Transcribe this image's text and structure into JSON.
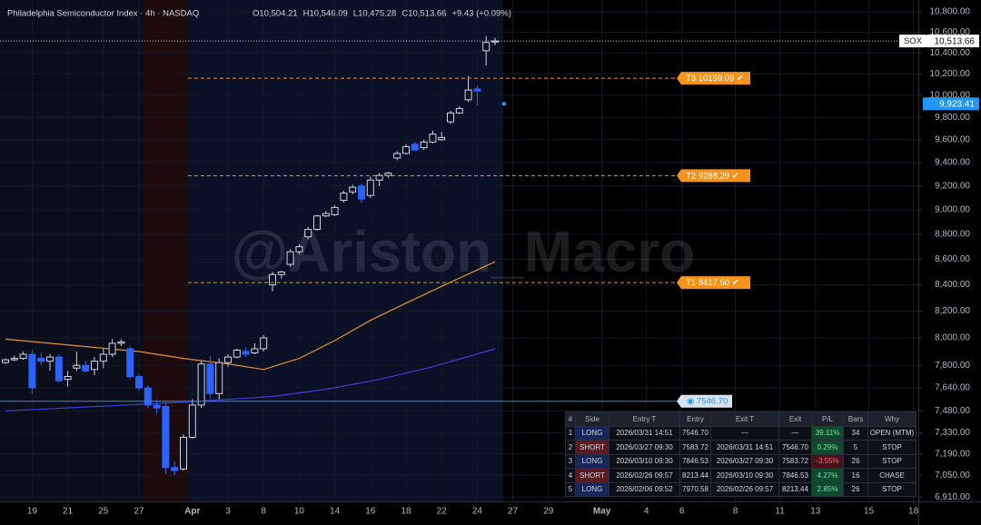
{
  "chart_data": {
    "type": "candlestick",
    "title": "Philadelphia Semiconductor Index · 4h · NASDAQ",
    "ohlc_header": [
      "O10,504.21",
      "H10,546.09",
      "L10,475.28",
      "C10,513.66"
    ],
    "change": "+9.43 (+0.09%)",
    "watermark": "@Ariston_Macro",
    "categories": [
      null,
      null,
      null,
      "19",
      null,
      null,
      null,
      "21",
      null,
      null,
      null,
      "25",
      null,
      null,
      null,
      "27",
      null,
      null,
      null,
      null,
      null,
      "Apr",
      null,
      null,
      null,
      "3",
      null,
      null,
      null,
      "8",
      null,
      null,
      null,
      "10",
      null,
      null,
      null,
      "14",
      null,
      null,
      null,
      "16",
      null,
      null,
      null,
      "18",
      null,
      null,
      null,
      "22",
      null,
      null,
      null,
      "24",
      null,
      null,
      null,
      "27",
      null,
      null,
      null,
      "29",
      null,
      null,
      null,
      null,
      null,
      "May",
      null,
      null,
      null,
      null,
      "4",
      null,
      null,
      null,
      "6",
      null,
      null,
      null,
      null,
      null,
      "8",
      null,
      null,
      null,
      null,
      "11",
      null,
      null,
      null,
      "13",
      null,
      null,
      null,
      null,
      null,
      "15",
      null,
      null,
      null,
      null,
      "18"
    ],
    "open": [
      7820,
      7840,
      7850,
      7880,
      7850,
      7830,
      7860,
      7700,
      7780,
      7800,
      7770,
      7830,
      7880,
      7960,
      7920,
      7720,
      7640,
      7520,
      7510,
      7100,
      7090,
      7300,
      7520,
      7810,
      7600,
      7820,
      7860,
      7900,
      7890,
      7920,
      8400,
      8480,
      8560,
      8660,
      8780,
      8840,
      8950,
      8960,
      9080,
      9150,
      9200,
      9120,
      9250,
      9290,
      9440,
      9480,
      9560,
      9530,
      9580,
      9600,
      9760,
      9840,
      9960,
      10060,
      10420,
      10504.21,
      null,
      null,
      null,
      null,
      null,
      null,
      null,
      null,
      null,
      null,
      null,
      null,
      null,
      null,
      null,
      null,
      null,
      null,
      null,
      null,
      null,
      null,
      null,
      null,
      null,
      null,
      null,
      null,
      null,
      null,
      null,
      null,
      null,
      null,
      null,
      null,
      null,
      null,
      null,
      null,
      null,
      null,
      null,
      null,
      null,
      null,
      null
    ],
    "high": [
      7850,
      7870,
      7900,
      7910,
      7890,
      7880,
      7880,
      7760,
      7900,
      7830,
      7860,
      7920,
      7990,
      7990,
      7940,
      7740,
      7660,
      7560,
      7540,
      7140,
      7320,
      7560,
      7830,
      7870,
      7850,
      7880,
      7920,
      7930,
      7960,
      8020,
      8500,
      8510,
      8680,
      8720,
      8860,
      8960,
      8990,
      9040,
      9160,
      9210,
      9220,
      9280,
      9310,
      9320,
      9500,
      9560,
      9580,
      9600,
      9680,
      9670,
      9860,
      9900,
      10180,
      10090,
      10560,
      10546.09,
      null,
      null,
      null,
      null,
      null,
      null,
      null,
      null,
      null,
      null,
      null,
      null,
      null,
      null,
      null,
      null,
      null,
      null,
      null,
      null,
      null,
      null,
      null,
      null,
      null,
      null,
      null,
      null,
      null,
      null,
      null,
      null,
      null,
      null,
      null,
      null,
      null,
      null,
      null,
      null,
      null,
      null,
      null,
      null,
      null,
      null,
      null
    ],
    "low": [
      7810,
      7830,
      7840,
      7600,
      7800,
      7760,
      7680,
      7650,
      7760,
      7750,
      7730,
      7780,
      7860,
      7940,
      7700,
      7620,
      7500,
      7460,
      7060,
      7050,
      7080,
      7290,
      7500,
      7560,
      7560,
      7790,
      7850,
      7860,
      7880,
      7900,
      8350,
      8450,
      8540,
      8640,
      8760,
      8830,
      8940,
      8950,
      9060,
      9130,
      9060,
      9100,
      9200,
      9270,
      9420,
      9470,
      9500,
      9510,
      9570,
      9590,
      9740,
      9830,
      9940,
      9910,
      10280,
      10475.28,
      null,
      null,
      null,
      null,
      null,
      null,
      null,
      null,
      null,
      null,
      null,
      null,
      null,
      null,
      null,
      null,
      null,
      null,
      null,
      null,
      null,
      null,
      null,
      null,
      null,
      null,
      null,
      null,
      null,
      null,
      null,
      null,
      null,
      null,
      null,
      null,
      null,
      null,
      null,
      null,
      null,
      null,
      null,
      null,
      null,
      null,
      null
    ],
    "close": [
      7840,
      7850,
      7880,
      7640,
      7830,
      7860,
      7690,
      7720,
      7800,
      7760,
      7830,
      7880,
      7960,
      7970,
      7720,
      7640,
      7520,
      7500,
      7100,
      7080,
      7300,
      7520,
      7810,
      7600,
      7820,
      7860,
      7910,
      7880,
      7920,
      8000,
      8480,
      8500,
      8660,
      8700,
      8840,
      8950,
      8970,
      9020,
      9140,
      9190,
      9090,
      9250,
      9290,
      9310,
      9480,
      9540,
      9510,
      9580,
      9650,
      9620,
      9840,
      9880,
      10050,
      10040,
      10500,
      10513.66,
      null,
      null,
      null,
      null,
      null,
      null,
      null,
      null,
      null,
      null,
      null,
      null,
      null,
      null,
      null,
      null,
      null,
      null,
      null,
      null,
      null,
      null,
      null,
      null,
      null,
      null,
      null,
      null,
      null,
      null,
      null,
      null,
      null,
      null,
      null,
      null,
      null,
      null,
      null,
      null,
      null,
      null,
      null,
      null,
      null,
      null,
      null
    ],
    "up_color": "#d1d4dc",
    "down_color": "#2962ff",
    "lines": [
      {
        "color": "#e8902a",
        "x": [
          0,
          5,
          10,
          15,
          20,
          25,
          29,
          33,
          37,
          41,
          45,
          50,
          55
        ],
        "values": [
          7990,
          7960,
          7930,
          7900,
          7850,
          7810,
          7770,
          7850,
          7980,
          8130,
          8260,
          8420,
          8580
        ]
      },
      {
        "color": "#3d3ddc",
        "x": [
          0,
          10,
          20,
          30,
          36,
          42,
          48,
          55
        ],
        "values": [
          7480,
          7510,
          7540,
          7580,
          7630,
          7700,
          7790,
          7920
        ]
      }
    ],
    "ylim": [
      6882,
      10918
    ],
    "log": true,
    "grid": true,
    "yticks": [
      {
        "value": 10800,
        "label": "10,800.00"
      },
      {
        "value": 10600,
        "label": "10,600.00"
      },
      {
        "value": 10400,
        "label": "10,400.00"
      },
      {
        "value": 10200,
        "label": "10,200.00"
      },
      {
        "value": 10000,
        "label": "10,000.00"
      },
      {
        "value": 9800,
        "label": "9,800.00"
      },
      {
        "value": 9600,
        "label": "9,600.00"
      },
      {
        "value": 9400,
        "label": "9,400.00"
      },
      {
        "value": 9200,
        "label": "9,200.00"
      },
      {
        "value": 9000,
        "label": "9,000.00"
      },
      {
        "value": 8800,
        "label": "8,800.00"
      },
      {
        "value": 8600,
        "label": "8,600.00"
      },
      {
        "value": 8400,
        "label": "8,400.00"
      },
      {
        "value": 8200,
        "label": "8,200.00"
      },
      {
        "value": 8000,
        "label": "8,000.00"
      },
      {
        "value": 7800,
        "label": "7,800.00"
      },
      {
        "value": 7640,
        "label": "7,640.00"
      },
      {
        "value": 7480,
        "label": "7,480.00"
      },
      {
        "value": 7330,
        "label": "7,330.00"
      },
      {
        "value": 7190,
        "label": "7,190.00"
      },
      {
        "value": 7050,
        "label": "7,050.00"
      },
      {
        "value": 6910,
        "label": "6,910.00"
      }
    ],
    "target_color": "#f7931a",
    "targets": [
      {
        "label": "T3 10159.09 ✔",
        "value": 10159.09
      },
      {
        "label": "T2 9288.29 ✔",
        "value": 9288.29
      },
      {
        "label": "T1 8417.50 ✔",
        "value": 8417.5
      }
    ],
    "entry": {
      "label": "◉ 7546.70",
      "value": 7546.7,
      "color": "#2f8fe0"
    },
    "last": {
      "symbol": "SOX",
      "label": "10,513.66",
      "value": 10513.66
    },
    "marker": {
      "label": "9,923.41",
      "value": 9923.41,
      "color": "#2196f3"
    }
  },
  "table": {
    "header": [
      "#",
      "Side",
      "Entry T",
      "Entry",
      "Exit T",
      "Exit",
      "P/L",
      "Bars",
      "Why"
    ],
    "rows": [
      [
        "1",
        "LONG",
        "2026/03/31 14:51",
        "7546.70",
        "—",
        "—",
        "39.11%",
        "34",
        "OPEN (MTM)"
      ],
      [
        "2",
        "SHORT",
        "2026/03/27 09:30",
        "7583.72",
        "2026/03/31 14:51",
        "7546.70",
        "0.29%",
        "5",
        "STOP"
      ],
      [
        "3",
        "LONG",
        "2026/03/10 09:30",
        "7846.53",
        "2026/03/27 09:30",
        "7583.72",
        "-3.55%",
        "26",
        "STOP"
      ],
      [
        "4",
        "SHORT",
        "2026/02/26 09:57",
        "8213.44",
        "2026/03/10 09:30",
        "7846.53",
        "4.27%",
        "16",
        "CHASE"
      ],
      [
        "5",
        "LONG",
        "2026/02/06 09:52",
        "7970.58",
        "2026/02/26 09:57",
        "8213.44",
        "2.85%",
        "26",
        "STOP"
      ]
    ]
  }
}
